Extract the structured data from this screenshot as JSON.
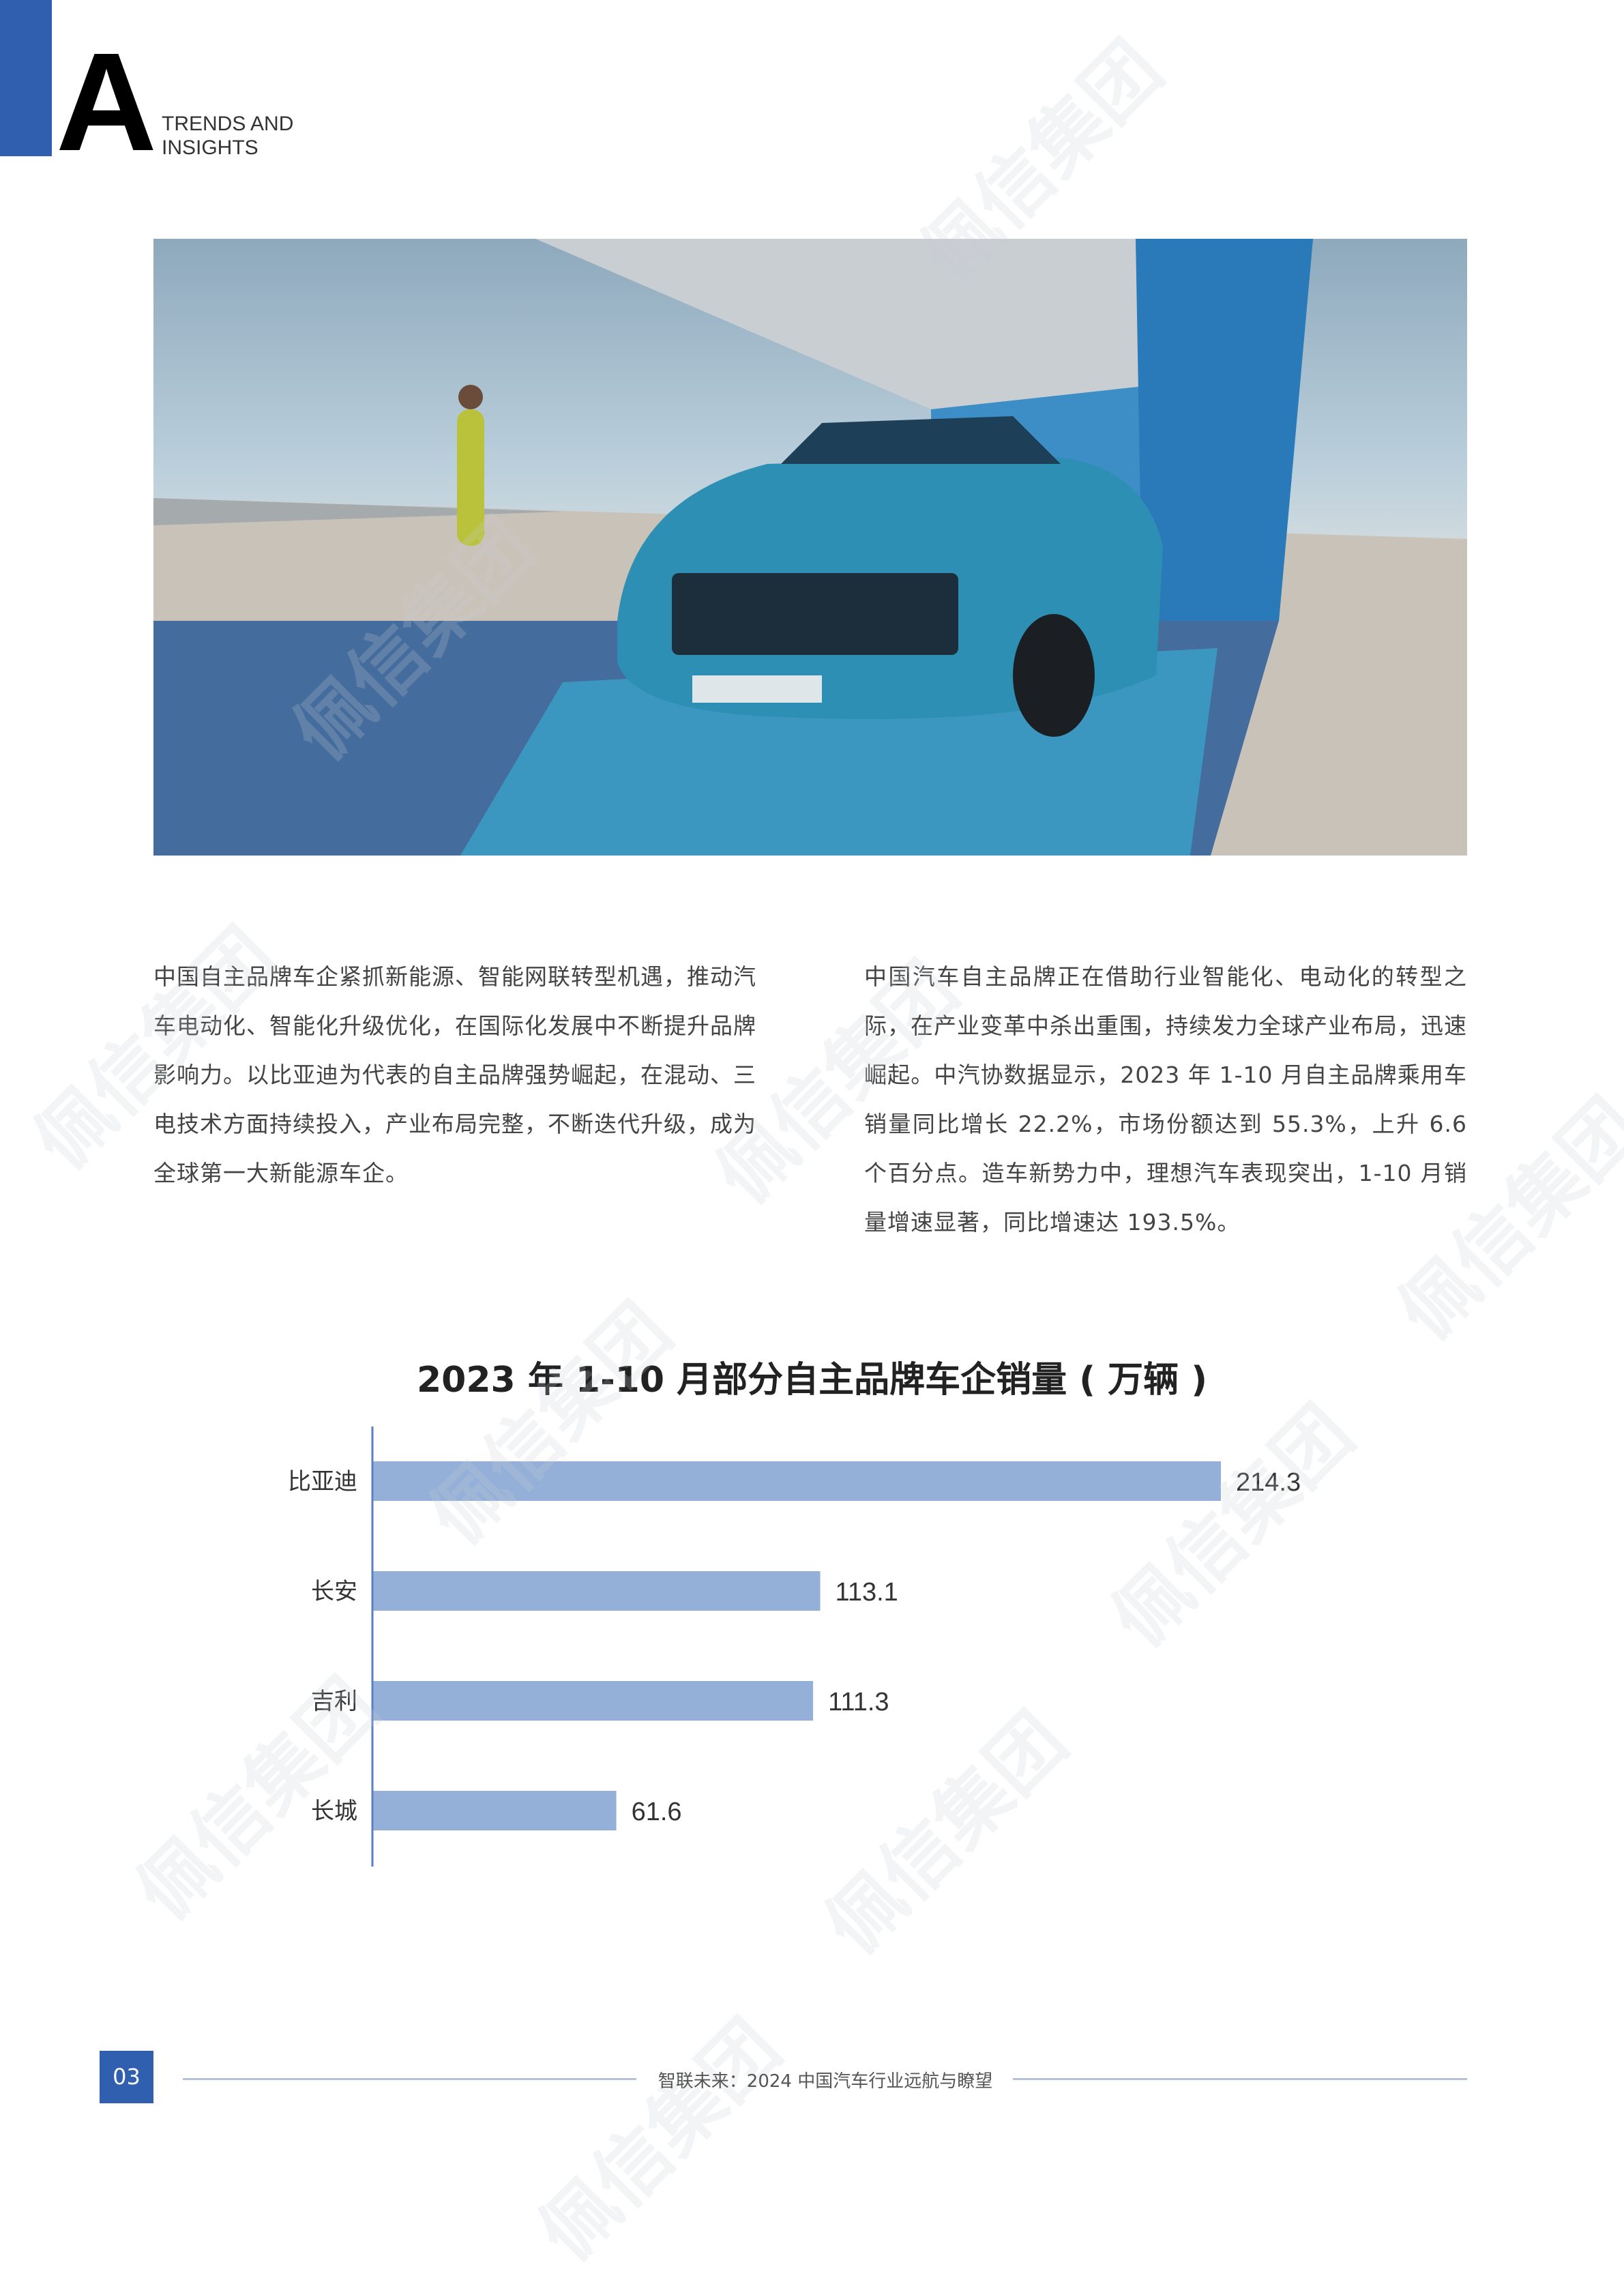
{
  "header": {
    "letter": "A",
    "title_line1": "TRENDS AND",
    "title_line2": "INSIGHTS",
    "accent_color": "#2f5fae"
  },
  "hero_image": {
    "description_icon": "car-photo"
  },
  "paragraphs": {
    "left": "中国自主品牌车企紧抓新能源、智能网联转型机遇，推动汽车电动化、智能化升级优化，在国际化发展中不断提升品牌影响力。以比亚迪为代表的自主品牌强势崛起，在混动、三电技术方面持续投入，产业布局完整，不断迭代升级，成为全球第一大新能源车企。",
    "right": "中国汽车自主品牌正在借助行业智能化、电动化的转型之际，在产业变革中杀出重围，持续发力全球产业布局，迅速崛起。中汽协数据显示，2023 年 1-10 月自主品牌乘用车销量同比增长 22.2%，市场份额达到 55.3%，上升 6.6 个百分点。造车新势力中，理想汽车表现突出，1-10 月销量增速显著，同比增速达 193.5%。"
  },
  "chart_data": {
    "type": "bar",
    "orientation": "horizontal",
    "title": "2023 年 1-10 月部分自主品牌车企销量 ( 万辆 )",
    "categories": [
      "比亚迪",
      "长安",
      "吉利",
      "长城"
    ],
    "values": [
      214.3,
      113.1,
      111.3,
      61.6
    ],
    "value_labels": [
      "214.3",
      "113.1",
      "111.3",
      "61.6"
    ],
    "xlim": [
      0,
      214.3
    ],
    "grid": false,
    "bar_color": "#94b0d8",
    "axis_color": "#5b7fc0"
  },
  "footer": {
    "page_number": "03",
    "title": "智联未来：2024 中国汽车行业远航与瞭望"
  },
  "watermark": "佩信集团"
}
